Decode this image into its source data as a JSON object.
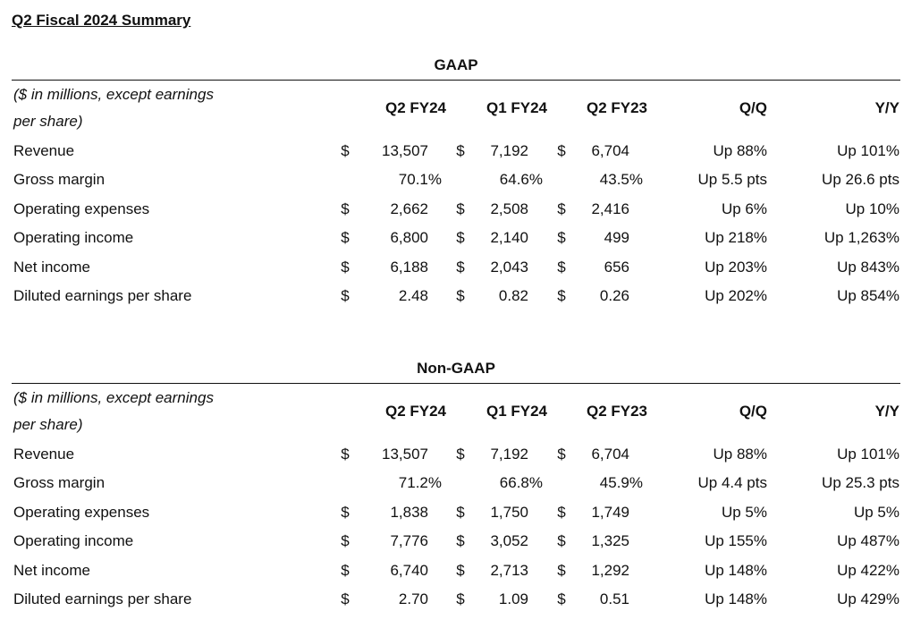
{
  "title": "Q2 Fiscal 2024 Summary",
  "tables": [
    {
      "heading": "GAAP",
      "caption": "($ in millions, except earnings per share)",
      "columns": [
        "Q2 FY24",
        "Q1 FY24",
        "Q2 FY23",
        "Q/Q",
        "Y/Y"
      ],
      "rows": [
        [
          "Revenue",
          "$",
          "13,507",
          "$",
          "7,192",
          "$",
          "6,704",
          "Up 88%",
          "Up 101%"
        ],
        [
          "Gross margin",
          null,
          "70.1%",
          null,
          "64.6%",
          null,
          "43.5%",
          "Up 5.5 pts",
          "Up 26.6 pts"
        ],
        [
          "Operating expenses",
          "$",
          "2,662",
          "$",
          "2,508",
          "$",
          "2,416",
          "Up 6%",
          "Up 10%"
        ],
        [
          "Operating income",
          "$",
          "6,800",
          "$",
          "2,140",
          "$",
          "499",
          "Up 218%",
          "Up 1,263%"
        ],
        [
          "Net income",
          "$",
          "6,188",
          "$",
          "2,043",
          "$",
          "656",
          "Up 203%",
          "Up 843%"
        ],
        [
          "Diluted earnings per share",
          "$",
          "2.48",
          "$",
          "0.82",
          "$",
          "0.26",
          "Up 202%",
          "Up 854%"
        ]
      ]
    },
    {
      "heading": "Non-GAAP",
      "caption": "($ in millions, except earnings per share)",
      "columns": [
        "Q2 FY24",
        "Q1 FY24",
        "Q2 FY23",
        "Q/Q",
        "Y/Y"
      ],
      "rows": [
        [
          "Revenue",
          "$",
          "13,507",
          "$",
          "7,192",
          "$",
          "6,704",
          "Up 88%",
          "Up 101%"
        ],
        [
          "Gross margin",
          null,
          "71.2%",
          null,
          "66.8%",
          null,
          "45.9%",
          "Up 4.4 pts",
          "Up 25.3 pts"
        ],
        [
          "Operating expenses",
          "$",
          "1,838",
          "$",
          "1,750",
          "$",
          "1,749",
          "Up 5%",
          "Up 5%"
        ],
        [
          "Operating income",
          "$",
          "7,776",
          "$",
          "3,052",
          "$",
          "1,325",
          "Up 155%",
          "Up 487%"
        ],
        [
          "Net income",
          "$",
          "6,740",
          "$",
          "2,713",
          "$",
          "1,292",
          "Up 148%",
          "Up 422%"
        ],
        [
          "Diluted earnings per share",
          "$",
          "2.70",
          "$",
          "1.09",
          "$",
          "0.51",
          "Up 148%",
          "Up 429%"
        ]
      ]
    }
  ]
}
